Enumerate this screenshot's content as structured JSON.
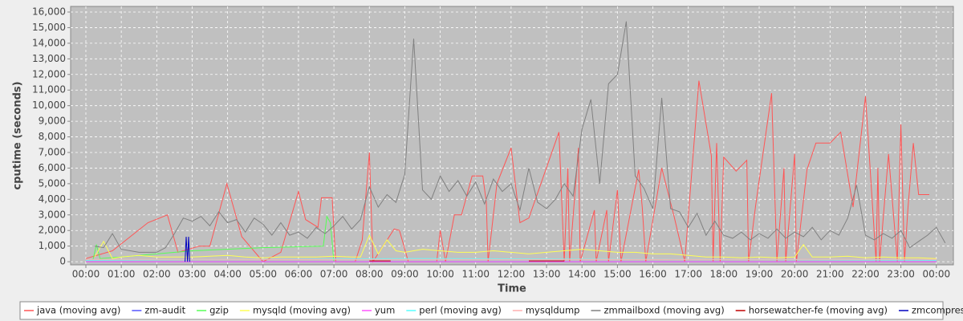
{
  "chart_data": {
    "type": "line",
    "xlabel": "Time",
    "ylabel": "cputime (seconds)",
    "xlim": [
      -0.43,
      24.48
    ],
    "ylim": [
      -200,
      16360
    ],
    "grid": true,
    "legend": "bottom",
    "background": "#c0c0c0",
    "xticks": [
      {
        "value": 0,
        "label": "00:00"
      },
      {
        "value": 1,
        "label": "01:00"
      },
      {
        "value": 2,
        "label": "02:00"
      },
      {
        "value": 3,
        "label": "03:00"
      },
      {
        "value": 4,
        "label": "04:00"
      },
      {
        "value": 5,
        "label": "05:00"
      },
      {
        "value": 6,
        "label": "06:00"
      },
      {
        "value": 7,
        "label": "07:00"
      },
      {
        "value": 8,
        "label": "08:00"
      },
      {
        "value": 9,
        "label": "09:00"
      },
      {
        "value": 10,
        "label": "10:00"
      },
      {
        "value": 11,
        "label": "11:00"
      },
      {
        "value": 12,
        "label": "12:00"
      },
      {
        "value": 13,
        "label": "13:00"
      },
      {
        "value": 14,
        "label": "14:00"
      },
      {
        "value": 15,
        "label": "15:00"
      },
      {
        "value": 16,
        "label": "16:00"
      },
      {
        "value": 17,
        "label": "17:00"
      },
      {
        "value": 18,
        "label": "18:00"
      },
      {
        "value": 19,
        "label": "19:00"
      },
      {
        "value": 20,
        "label": "20:00"
      },
      {
        "value": 21,
        "label": "21:00"
      },
      {
        "value": 22,
        "label": "22:00"
      },
      {
        "value": 23,
        "label": "23:00"
      },
      {
        "value": 24,
        "label": "00:00"
      }
    ],
    "yticks": [
      0,
      {
        "value": 1000,
        "label": "1,000"
      },
      {
        "value": 2000,
        "label": "2,000"
      },
      {
        "value": 3000,
        "label": "3,000"
      },
      {
        "value": 4000,
        "label": "4,000"
      },
      {
        "value": 5000,
        "label": "5,000"
      },
      {
        "value": 6000,
        "label": "6,000"
      },
      {
        "value": 7000,
        "label": "7,000"
      },
      {
        "value": 8000,
        "label": "8,000"
      },
      {
        "value": 9000,
        "label": "9,000"
      },
      {
        "value": 10000,
        "label": "10,000"
      },
      {
        "value": 11000,
        "label": "11,000"
      },
      {
        "value": 12000,
        "label": "12,000"
      },
      {
        "value": 13000,
        "label": "13,000"
      },
      {
        "value": 14000,
        "label": "14,000"
      },
      {
        "value": 15000,
        "label": "15,000"
      },
      {
        "value": 16000,
        "label": "16,000"
      }
    ],
    "series": [
      {
        "name": "java (moving avg)",
        "color": "#ff5555",
        "x": [
          0,
          0.75,
          1.75,
          2.3,
          2.6,
          3.2,
          3.5,
          3.98,
          4.4,
          5.0,
          5.5,
          6.0,
          6.2,
          6.55,
          6.65,
          6.95,
          7.05,
          7.6,
          7.8,
          8.0,
          8.1,
          8.7,
          8.85,
          9.1,
          9.9,
          10.0,
          10.15,
          10.4,
          10.6,
          10.9,
          11.2,
          11.3,
          11.35,
          11.6,
          12.0,
          12.25,
          12.5,
          13.35,
          13.5,
          13.6,
          13.65,
          13.9,
          13.95,
          14.35,
          14.4,
          14.7,
          14.75,
          15.0,
          15.1,
          15.6,
          15.7,
          15.8,
          16.25,
          16.6,
          16.9,
          17.3,
          17.65,
          17.7,
          17.8,
          17.9,
          18.0,
          18.35,
          18.65,
          18.7,
          18.9,
          19.35,
          19.5,
          19.7,
          19.75,
          20.0,
          20.05,
          20.35,
          20.6,
          21.0,
          21.3,
          21.65,
          22.0,
          22.3,
          22.35,
          22.4,
          22.65,
          22.9,
          23.0,
          23.1,
          23.2,
          23.35,
          23.5,
          23.8
        ],
        "values": [
          200,
          700,
          2500,
          3000,
          600,
          1000,
          1000,
          5000,
          1600,
          0,
          600,
          4500,
          2700,
          2200,
          4100,
          4100,
          0,
          0,
          1400,
          7000,
          0,
          2100,
          2000,
          0,
          0,
          2000,
          0,
          3000,
          3000,
          5500,
          5500,
          3800,
          0,
          5000,
          7300,
          2500,
          2800,
          8300,
          0,
          6000,
          0,
          7300,
          0,
          3300,
          0,
          3300,
          0,
          4600,
          0,
          5900,
          3500,
          0,
          6000,
          2900,
          0,
          11600,
          6800,
          0,
          7600,
          0,
          6700,
          5800,
          6500,
          0,
          3600,
          10800,
          0,
          6000,
          0,
          6900,
          0,
          5900,
          7600,
          7600,
          8300,
          3500,
          10600,
          0,
          6000,
          0,
          6900,
          0,
          8800,
          0,
          3500,
          7600,
          4300,
          4300
        ]
      },
      {
        "name": "zm-audit",
        "color": "#5555ff",
        "x": [
          0,
          24
        ],
        "values": [
          0,
          0
        ]
      },
      {
        "name": "gzip",
        "color": "#55ff55",
        "x": [
          0.2,
          0.3,
          0.4,
          1.0,
          3.0,
          5.0,
          6.7,
          6.8,
          6.9,
          7.0
        ],
        "values": [
          100,
          1100,
          200,
          300,
          700,
          900,
          1000,
          2900,
          2500,
          0
        ]
      },
      {
        "name": "mysqld (moving avg)",
        "color": "#ffff55",
        "x": [
          0.25,
          0.5,
          0.75,
          1.0,
          1.5,
          2.0,
          2.5,
          3.0,
          3.5,
          4.0,
          4.5,
          5.0,
          5.5,
          6.0,
          6.5,
          7.0,
          7.5,
          7.75,
          8.0,
          8.25,
          8.5,
          8.75,
          9.0,
          9.5,
          10.0,
          10.5,
          11.0,
          11.5,
          12.0,
          12.5,
          13.0,
          13.5,
          14.0,
          14.5,
          15.0,
          15.5,
          16.0,
          16.5,
          17.0,
          17.5,
          18.0,
          18.5,
          19.0,
          19.5,
          20.0,
          20.25,
          20.5,
          21.0,
          21.5,
          22.0,
          22.5,
          23.0,
          23.5,
          24.0
        ],
        "values": [
          300,
          1300,
          200,
          300,
          400,
          300,
          300,
          300,
          350,
          400,
          300,
          250,
          300,
          300,
          300,
          350,
          300,
          300,
          1700,
          500,
          1400,
          700,
          600,
          800,
          700,
          600,
          600,
          700,
          600,
          500,
          600,
          700,
          800,
          700,
          600,
          600,
          500,
          500,
          400,
          300,
          300,
          250,
          300,
          250,
          300,
          1100,
          300,
          300,
          350,
          250,
          300,
          250,
          250,
          200
        ]
      },
      {
        "name": "yum",
        "color": "#ff55ff",
        "x": [
          0,
          24
        ],
        "values": [
          0,
          0
        ]
      },
      {
        "name": "perl (moving avg)",
        "color": "#55ffff",
        "x": [
          0,
          9,
          10,
          24
        ],
        "values": [
          100,
          200,
          200,
          100
        ]
      },
      {
        "name": "mysqldump",
        "color": "#ffafaf",
        "x": [
          0,
          24
        ],
        "values": [
          150,
          150
        ]
      },
      {
        "name": "zmmailboxd (moving avg)",
        "color": "#808080",
        "x": [
          0.25,
          0.5,
          0.75,
          1.0,
          1.25,
          1.5,
          1.75,
          2.0,
          2.25,
          2.5,
          2.75,
          3.0,
          3.25,
          3.5,
          3.75,
          4.0,
          4.25,
          4.5,
          4.75,
          5.0,
          5.25,
          5.5,
          5.75,
          6.0,
          6.25,
          6.5,
          6.75,
          7.0,
          7.25,
          7.5,
          7.75,
          8.0,
          8.25,
          8.5,
          8.75,
          9.0,
          9.25,
          9.5,
          9.75,
          10.0,
          10.25,
          10.5,
          10.75,
          11.0,
          11.25,
          11.5,
          11.75,
          12.0,
          12.25,
          12.5,
          12.75,
          13.0,
          13.25,
          13.5,
          13.75,
          14.0,
          14.25,
          14.5,
          14.75,
          15.0,
          15.25,
          15.5,
          15.75,
          16.0,
          16.25,
          16.5,
          16.75,
          17.0,
          17.25,
          17.5,
          17.75,
          18.0,
          18.25,
          18.5,
          18.75,
          19.0,
          19.25,
          19.5,
          19.75,
          20.0,
          20.25,
          20.5,
          20.75,
          21.0,
          21.25,
          21.5,
          21.75,
          22.0,
          22.25,
          22.5,
          22.75,
          23.0,
          23.25,
          23.5,
          23.75,
          24.0,
          24.25
        ],
        "values": [
          1000,
          900,
          1800,
          800,
          700,
          600,
          600,
          600,
          900,
          1800,
          2800,
          2600,
          2900,
          2300,
          3200,
          2500,
          2700,
          1900,
          2800,
          2400,
          1700,
          2500,
          1700,
          1900,
          1500,
          2200,
          1800,
          2300,
          2900,
          2100,
          2700,
          4800,
          3500,
          4300,
          3800,
          5600,
          14300,
          4600,
          4000,
          5500,
          4500,
          5200,
          4200,
          5100,
          3700,
          5300,
          4500,
          5000,
          3300,
          6000,
          3800,
          3400,
          4000,
          5000,
          4200,
          8500,
          10400,
          5000,
          11400,
          12000,
          15400,
          5500,
          4700,
          3400,
          10500,
          3400,
          3200,
          2200,
          3100,
          1700,
          2600,
          1700,
          1500,
          1900,
          1400,
          1800,
          1500,
          2100,
          1500,
          1900,
          1600,
          2200,
          1400,
          2000,
          1700,
          2800,
          4900,
          1700,
          1400,
          1800,
          1500,
          2000,
          900,
          1300,
          1700,
          2200,
          1200
        ]
      },
      {
        "name": "horsewatcher-fe (moving avg)",
        "color": "#c00000",
        "x": [
          8.0,
          8.6,
          8.7,
          12.5,
          13.5
        ],
        "values": [
          50,
          50,
          null,
          50,
          50
        ]
      },
      {
        "name": "zmcompresslogs",
        "color": "#0000c0",
        "x": [
          2.8,
          2.83,
          2.87,
          2.9,
          2.93
        ],
        "values": [
          0,
          1600,
          0,
          1600,
          0
        ]
      }
    ]
  }
}
